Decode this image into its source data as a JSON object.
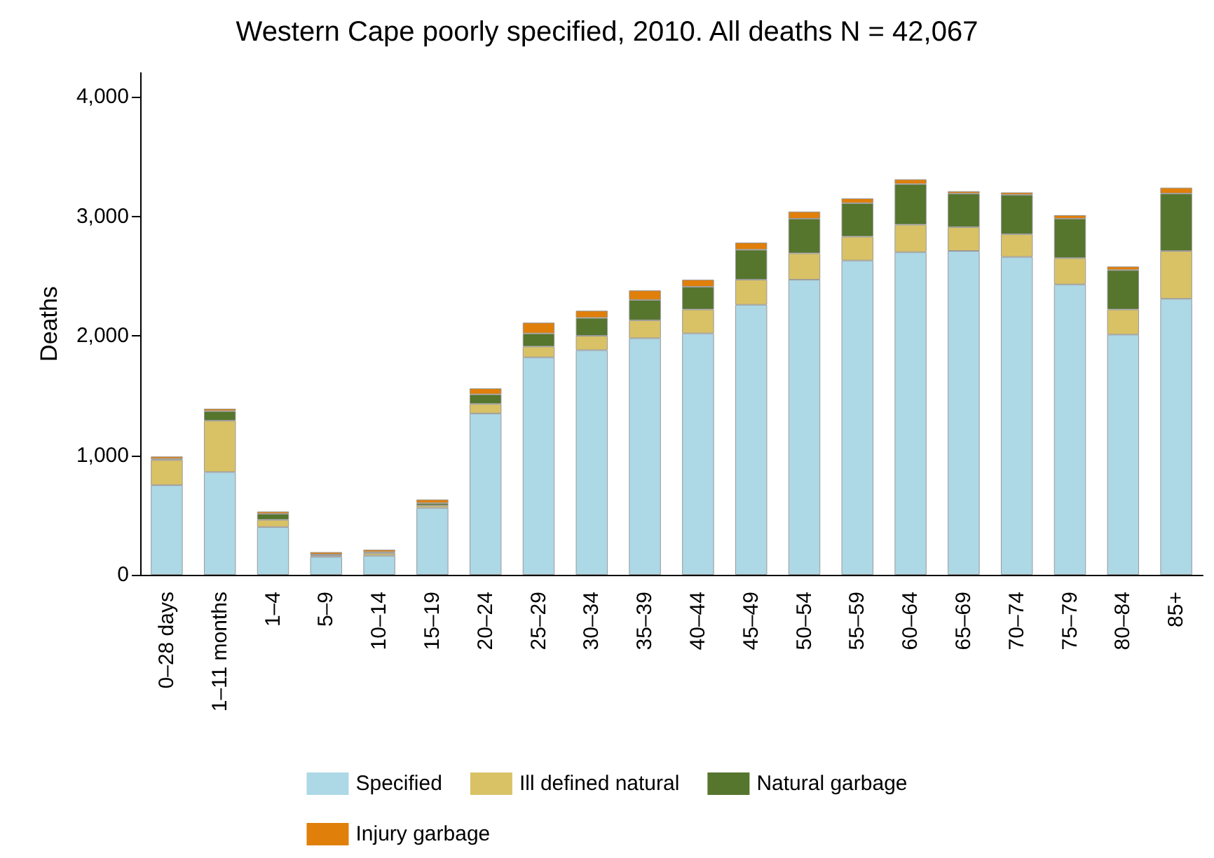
{
  "chart_data": {
    "type": "bar",
    "title": "Western Cape poorly specified, 2010. All deaths N = 42,067",
    "ylabel": "Deaths",
    "categories": [
      "0–28 days",
      "1–11 months",
      "1–4",
      "5–9",
      "10–14",
      "15–19",
      "20–24",
      "25–29",
      "30–34",
      "35–39",
      "40–44",
      "45–49",
      "50–54",
      "55–59",
      "60–64",
      "65–69",
      "70–74",
      "75–79",
      "80–84",
      "85+"
    ],
    "stacked": true,
    "series": [
      {
        "name": "Specified",
        "color": "#add8e6",
        "values": [
          750,
          860,
          400,
          150,
          160,
          560,
          1350,
          1820,
          1880,
          1980,
          2020,
          2260,
          2470,
          2630,
          2700,
          2710,
          2660,
          2430,
          2010,
          2310
        ]
      },
      {
        "name": "Ill defined natural",
        "color": "#d9c266",
        "values": [
          210,
          430,
          60,
          10,
          20,
          20,
          80,
          90,
          120,
          150,
          200,
          210,
          220,
          200,
          230,
          200,
          190,
          220,
          210,
          400
        ]
      },
      {
        "name": "Natural garbage",
        "color": "#56752d",
        "values": [
          10,
          80,
          50,
          10,
          10,
          20,
          80,
          110,
          150,
          170,
          190,
          250,
          290,
          280,
          340,
          280,
          330,
          330,
          330,
          480
        ]
      },
      {
        "name": "Injury garbage",
        "color": "#e07f0a",
        "values": [
          20,
          20,
          20,
          20,
          20,
          30,
          50,
          90,
          60,
          80,
          60,
          60,
          60,
          40,
          40,
          20,
          20,
          30,
          30,
          50
        ]
      }
    ],
    "ylim": [
      0,
      4200
    ],
    "yticks": [
      0,
      {
        "value": 1000,
        "label": "1,000"
      },
      {
        "value": 2000,
        "label": "2,000"
      },
      {
        "value": 3000,
        "label": "3,000"
      },
      {
        "value": 4000,
        "label": "4,000"
      }
    ],
    "grid": false,
    "legend": "bottom"
  }
}
